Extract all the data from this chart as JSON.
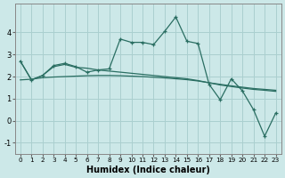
{
  "xlabel": "Humidex (Indice chaleur)",
  "bg_color": "#cce8e8",
  "grid_color": "#aacfcf",
  "line_color": "#2a6e62",
  "x_values": [
    0,
    1,
    2,
    3,
    4,
    5,
    6,
    7,
    8,
    9,
    10,
    11,
    12,
    13,
    14,
    15,
    16,
    17,
    18,
    19,
    20,
    21,
    22,
    23
  ],
  "series1": [
    2.7,
    1.85,
    2.05,
    2.5,
    2.6,
    2.45,
    2.2,
    2.3,
    2.35,
    3.7,
    3.55,
    3.55,
    3.45,
    4.05,
    4.7,
    3.6,
    3.5,
    1.65,
    0.95,
    1.9,
    1.35,
    0.5,
    -0.7,
    0.35
  ],
  "series2": [
    1.85,
    1.88,
    1.95,
    1.98,
    2.0,
    2.02,
    2.04,
    2.05,
    2.05,
    2.04,
    2.02,
    2.0,
    1.97,
    1.94,
    1.9,
    1.86,
    1.8,
    1.72,
    1.65,
    1.58,
    1.52,
    1.46,
    1.42,
    1.38
  ],
  "series3": [
    2.7,
    1.85,
    2.05,
    2.45,
    2.55,
    2.42,
    2.38,
    2.3,
    2.25,
    2.2,
    2.15,
    2.1,
    2.05,
    2.0,
    1.95,
    1.9,
    1.82,
    1.72,
    1.62,
    1.55,
    1.48,
    1.42,
    1.38,
    1.33
  ],
  "ylim": [
    -1.5,
    5.3
  ],
  "yticks": [
    -1,
    0,
    1,
    2,
    3,
    4
  ],
  "xticks": [
    0,
    1,
    2,
    3,
    4,
    5,
    6,
    7,
    8,
    9,
    10,
    11,
    12,
    13,
    14,
    15,
    16,
    17,
    18,
    19,
    20,
    21,
    22,
    23
  ],
  "xtick_fontsize": 5.2,
  "ytick_fontsize": 6.0,
  "xlabel_fontsize": 7.0,
  "xlabel_fontweight": "bold",
  "lw": 0.9,
  "marker_size": 3.5
}
